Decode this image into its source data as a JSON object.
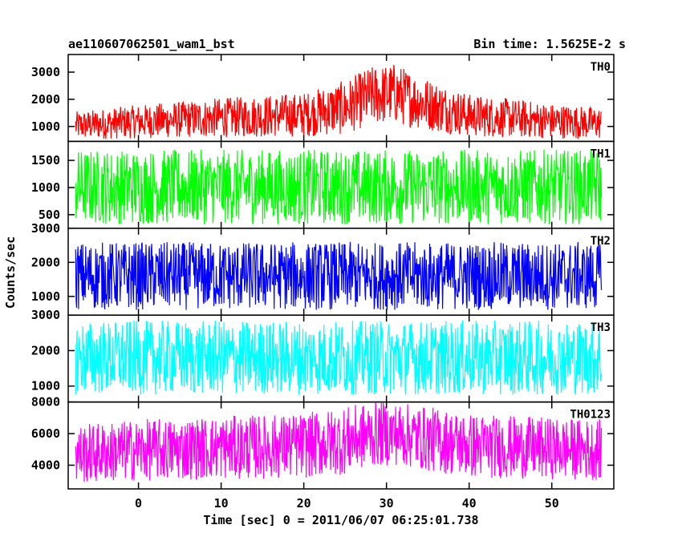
{
  "header": {
    "object": "ae110607062501_wam1_bst",
    "bin_time": "Bin time: 1.5625E-2 s"
  },
  "chart_data": {
    "type": "line",
    "xlabel": "Time [sec] 0 = 2011/06/07 06:25:01.738",
    "ylabel": "Counts/sec",
    "xlim": [
      -8.5,
      57.5
    ],
    "x_ticks": [
      0,
      10,
      20,
      30,
      40,
      50
    ],
    "x_tick_labels": [
      "0",
      "10",
      "20",
      "30",
      "40",
      "50"
    ],
    "data_x_range": [
      -7.6,
      56.0
    ],
    "panels": [
      {
        "name": "TH0",
        "color": "#ff0000",
        "ylim": [
          450,
          3650
        ],
        "y_ticks": [
          1000,
          2000,
          3000
        ],
        "y_tick_labels": [
          "1000",
          "2000",
          "3000"
        ],
        "profile": {
          "x": [
            -7.6,
            0,
            10,
            20,
            25,
            28,
            31,
            34,
            40,
            50,
            56
          ],
          "low": [
            500,
            560,
            600,
            620,
            700,
            1050,
            1100,
            900,
            620,
            550,
            530
          ],
          "high": [
            1550,
            1800,
            2050,
            2250,
            2700,
            3200,
            3350,
            2900,
            2200,
            1850,
            1700
          ]
        }
      },
      {
        "name": "TH1",
        "color": "#00ff00",
        "ylim": [
          250,
          1850
        ],
        "y_ticks": [
          500,
          1000,
          1500
        ],
        "y_tick_labels": [
          "500",
          "1000",
          "1500"
        ],
        "profile": {
          "x": [
            -7.6,
            56
          ],
          "low": [
            320,
            320
          ],
          "high": [
            1700,
            1700
          ]
        }
      },
      {
        "name": "TH2",
        "color": "#0000ff",
        "ylim": [
          450,
          3000
        ],
        "y_ticks": [
          1000,
          2000,
          3000
        ],
        "y_tick_labels": [
          "1000",
          "2000",
          "3000"
        ],
        "profile": {
          "x": [
            -7.6,
            56
          ],
          "low": [
            600,
            600
          ],
          "high": [
            2600,
            2600
          ]
        }
      },
      {
        "name": "TH3",
        "color": "#00ffff",
        "ylim": [
          550,
          3000
        ],
        "y_ticks": [
          1000,
          2000,
          3000
        ],
        "y_tick_labels": [
          "1000",
          "2000",
          "3000"
        ],
        "profile": {
          "x": [
            -7.6,
            56
          ],
          "low": [
            750,
            750
          ],
          "high": [
            2850,
            2850
          ]
        }
      },
      {
        "name": "TH0123",
        "color": "#ff00ff",
        "ylim": [
          2500,
          8000
        ],
        "y_ticks": [
          4000,
          6000,
          8000
        ],
        "y_tick_labels": [
          "4000",
          "6000",
          "8000"
        ],
        "profile": {
          "x": [
            -7.6,
            0,
            10,
            20,
            25,
            28,
            31,
            34,
            40,
            50,
            56
          ],
          "low": [
            2800,
            3000,
            3100,
            3150,
            3400,
            3900,
            4000,
            3700,
            3200,
            3100,
            3050
          ],
          "high": [
            6600,
            6900,
            7100,
            7300,
            7700,
            8000,
            8000,
            7800,
            7300,
            7000,
            6900
          ]
        }
      }
    ]
  }
}
